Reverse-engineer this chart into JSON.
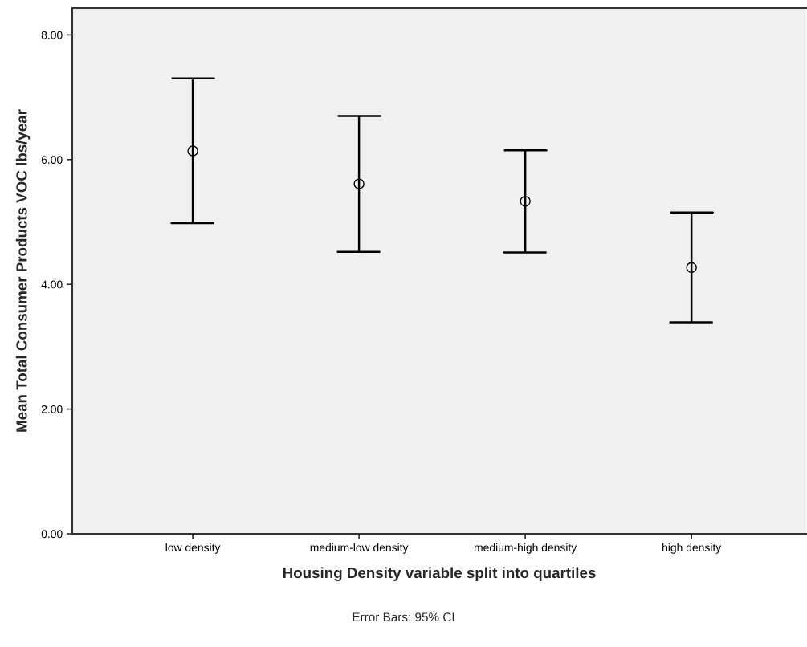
{
  "chart_data": {
    "type": "scatter",
    "xlabel": "Housing Density variable split into quartiles",
    "ylabel": "Mean Total Consumer Products VOC lbs/year",
    "annotations": [
      "Error Bars: 95% CI"
    ],
    "categories": [
      "low density",
      "medium-low density",
      "medium-high density",
      "high density"
    ],
    "values": [
      6.14,
      5.61,
      5.33,
      4.27
    ],
    "errors": [
      1.16,
      1.09,
      0.82,
      0.88
    ],
    "color": "#000000",
    "marker": "circle",
    "ylim": [
      0,
      8.43
    ],
    "yticks": [
      {
        "value": 0,
        "label": "0.00"
      },
      {
        "value": 2,
        "label": "2.00"
      },
      {
        "value": 4,
        "label": "4.00"
      },
      {
        "value": 6,
        "label": "6.00"
      },
      {
        "value": 8,
        "label": "8.00"
      }
    ]
  }
}
